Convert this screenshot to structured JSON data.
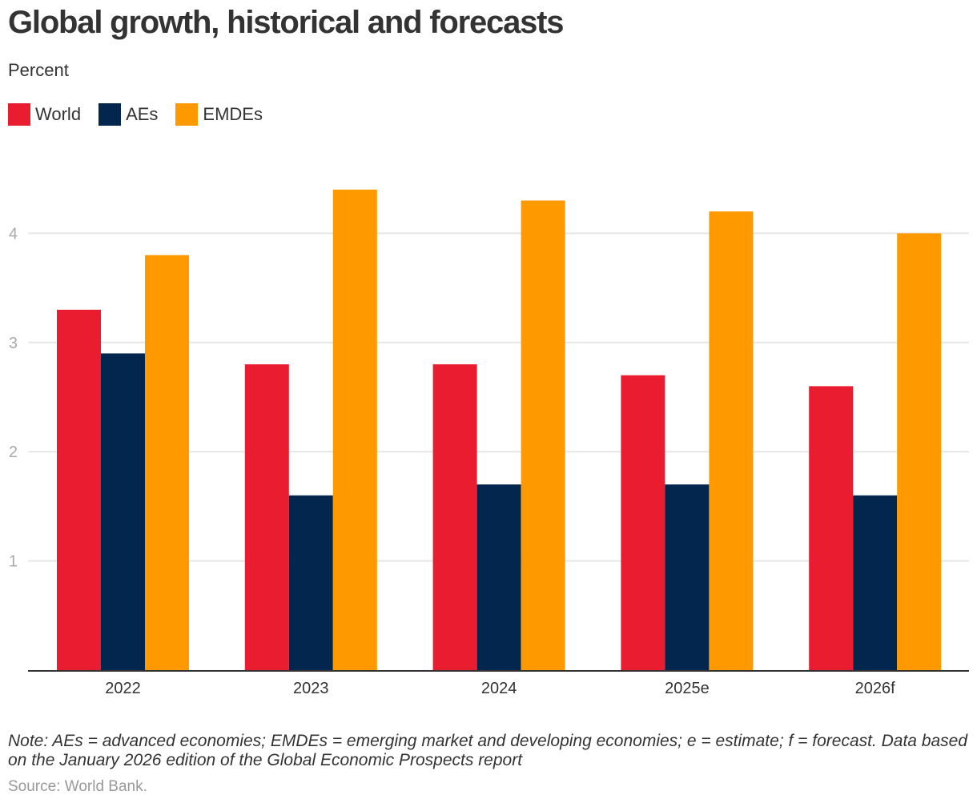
{
  "header": {
    "title": "Global growth, historical and forecasts",
    "subtitle": "Percent"
  },
  "legend": [
    {
      "label": "World",
      "color": "#e91d2f"
    },
    {
      "label": "AEs",
      "color": "#03264f"
    },
    {
      "label": "EMDEs",
      "color": "#ff9900"
    }
  ],
  "footer": {
    "note": "Note: AEs = advanced economies; EMDEs = emerging market and developing economies; e = estimate; f = forecast. Data based on the January 2026 edition of the Global Economic Prospects report",
    "source": "Source: World Bank."
  },
  "chart_data": {
    "type": "bar",
    "title": "Global growth, historical and forecasts",
    "subtitle": "Percent",
    "xlabel": "",
    "ylabel": "Percent",
    "categories": [
      "2022",
      "2023",
      "2024",
      "2025e",
      "2026f"
    ],
    "series": [
      {
        "name": "World",
        "color": "#e91d2f",
        "values": [
          3.3,
          2.8,
          2.8,
          2.7,
          2.6
        ]
      },
      {
        "name": "AEs",
        "color": "#03264f",
        "values": [
          2.9,
          1.6,
          1.7,
          1.7,
          1.6
        ]
      },
      {
        "name": "EMDEs",
        "color": "#ff9900",
        "values": [
          3.8,
          4.4,
          4.3,
          4.2,
          4.0
        ]
      }
    ],
    "yticks": [
      1,
      2,
      3,
      4
    ],
    "ylim": [
      0,
      4.4
    ],
    "grid": true,
    "legend_position": "top-left"
  }
}
